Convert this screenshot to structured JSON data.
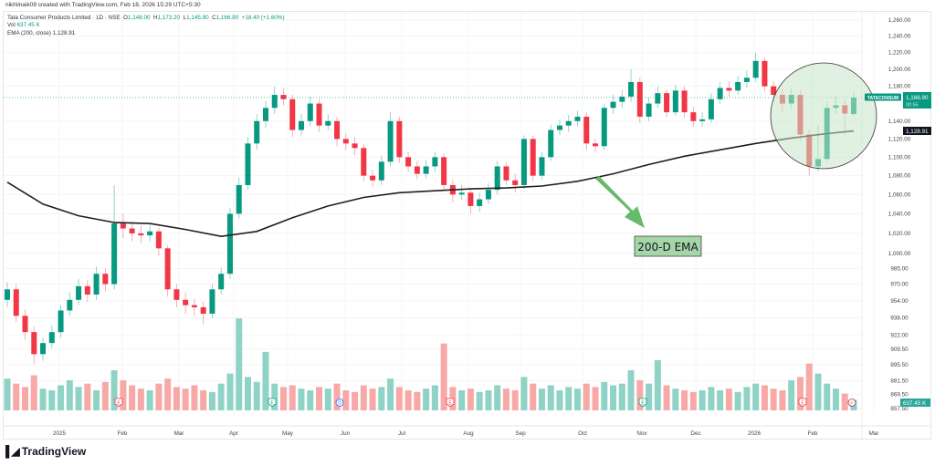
{
  "credit": "nikhilnaik09 created with TradingView.com, Feb 18, 2026 15:29 UTC+5:30",
  "legend": {
    "symbol": "Tata Consumer Products Limited · 1D · NSE",
    "o_label": "O",
    "o": "1,148.00",
    "h_label": "H",
    "h": "1,173.20",
    "l_label": "L",
    "l": "1,145.80",
    "c_label": "C",
    "c": "1,166.90",
    "change": "+18.40 (+1.60%)",
    "vol_label": "Vol",
    "vol": "637.45 K",
    "ema_label": "EMA (200, close)",
    "ema": "1,128.91"
  },
  "badges": {
    "ticker": "TATACONSUM",
    "price": "1,166.90",
    "countdown": "00:55",
    "ema": "1,128.91",
    "volume": "637.45 K"
  },
  "annotation": {
    "label": "200-D EMA"
  },
  "markers": {
    "earnings": "E",
    "dividend": "D",
    "split": "⚡"
  },
  "brand": "TradingView",
  "colors": {
    "up": "#089981",
    "down": "#f23645",
    "ema": "#1e1e1e",
    "highlight": "#c8e6c9",
    "arrow": "#66bb6a"
  },
  "chart_data": {
    "type": "candlestick",
    "title": "Tata Consumer Products Limited · 1D · NSE",
    "y_scale": "log",
    "ylim": [
      855,
      1265
    ],
    "yticks": [
      "1,260.00",
      "1,240.00",
      "1,220.00",
      "1,200.00",
      "1,180.00",
      "1,140.00",
      "1,120.00",
      "1,100.00",
      "1,080.00",
      "1,060.00",
      "1,040.00",
      "1,020.00",
      "1,000.00",
      "985.00",
      "970.00",
      "954.00",
      "938.00",
      "922.00",
      "909.50",
      "895.50",
      "881.50",
      "869.50",
      "857.50"
    ],
    "xticks": [
      "2025",
      "Feb",
      "Mar",
      "Apr",
      "May",
      "Jun",
      "Jul",
      "Aug",
      "Sep",
      "Oct",
      "Nov",
      "Dec",
      "2026",
      "Feb",
      "Mar"
    ],
    "open": [
      955,
      965,
      940,
      925,
      905,
      915,
      925,
      945,
      955,
      968,
      960,
      980,
      970,
      1030,
      1025,
      1020,
      1018,
      1022,
      1005,
      965,
      955,
      950,
      948,
      942,
      965,
      980,
      1040,
      1070,
      1115,
      1140,
      1155,
      1170,
      1165,
      1130,
      1140,
      1160,
      1135,
      1140,
      1120,
      1115,
      1110,
      1080,
      1075,
      1095,
      1140,
      1100,
      1090,
      1082,
      1090,
      1100,
      1070,
      1060,
      1062,
      1048,
      1055,
      1065,
      1090,
      1075,
      1070,
      1120,
      1080,
      1100,
      1130,
      1135,
      1140,
      1145,
      1115,
      1112,
      1155,
      1162,
      1168,
      1185,
      1145,
      1160,
      1172,
      1150,
      1175,
      1150,
      1140,
      1142,
      1165,
      1178,
      1175,
      1185,
      1190,
      1210,
      1180,
      1170,
      1160,
      1170,
      1125,
      1090,
      1098,
      1155,
      1158,
      1148
    ],
    "high": [
      972,
      970,
      946,
      930,
      920,
      931,
      950,
      962,
      975,
      974,
      987,
      985,
      1070,
      1040,
      1032,
      1028,
      1030,
      1026,
      1008,
      970,
      962,
      956,
      953,
      970,
      986,
      1046,
      1078,
      1122,
      1148,
      1163,
      1180,
      1178,
      1170,
      1148,
      1168,
      1165,
      1148,
      1145,
      1126,
      1122,
      1114,
      1086,
      1102,
      1150,
      1145,
      1106,
      1096,
      1097,
      1106,
      1104,
      1076,
      1070,
      1066,
      1062,
      1072,
      1096,
      1094,
      1082,
      1124,
      1124,
      1106,
      1136,
      1142,
      1147,
      1152,
      1150,
      1120,
      1160,
      1170,
      1176,
      1200,
      1190,
      1167,
      1180,
      1176,
      1182,
      1180,
      1156,
      1150,
      1172,
      1185,
      1186,
      1192,
      1198,
      1220,
      1214,
      1186,
      1176,
      1178,
      1176,
      1130,
      1136,
      1162,
      1168,
      1164,
      1173.2
    ],
    "low": [
      948,
      934,
      918,
      896,
      899,
      910,
      920,
      940,
      950,
      953,
      955,
      963,
      965,
      1015,
      1012,
      1010,
      1012,
      998,
      958,
      948,
      942,
      940,
      932,
      938,
      960,
      975,
      1035,
      1065,
      1108,
      1132,
      1148,
      1158,
      1122,
      1124,
      1134,
      1128,
      1130,
      1112,
      1108,
      1102,
      1074,
      1068,
      1070,
      1090,
      1094,
      1084,
      1076,
      1077,
      1084,
      1064,
      1052,
      1054,
      1040,
      1042,
      1050,
      1060,
      1070,
      1062,
      1066,
      1074,
      1076,
      1096,
      1124,
      1128,
      1134,
      1108,
      1105,
      1108,
      1148,
      1155,
      1162,
      1138,
      1140,
      1155,
      1144,
      1146,
      1144,
      1134,
      1134,
      1138,
      1160,
      1168,
      1170,
      1178,
      1185,
      1174,
      1162,
      1150,
      1154,
      1118,
      1080,
      1084,
      1094,
      1148,
      1125,
      1145.8
    ],
    "close": [
      965,
      940,
      925,
      905,
      915,
      925,
      945,
      955,
      968,
      960,
      980,
      970,
      1030,
      1025,
      1020,
      1018,
      1022,
      1005,
      965,
      955,
      950,
      948,
      942,
      965,
      980,
      1040,
      1070,
      1115,
      1140,
      1155,
      1170,
      1165,
      1130,
      1140,
      1160,
      1135,
      1140,
      1120,
      1115,
      1110,
      1080,
      1075,
      1095,
      1140,
      1100,
      1090,
      1082,
      1090,
      1100,
      1070,
      1060,
      1062,
      1048,
      1055,
      1065,
      1090,
      1075,
      1070,
      1120,
      1080,
      1100,
      1130,
      1135,
      1140,
      1145,
      1115,
      1112,
      1155,
      1162,
      1168,
      1185,
      1145,
      1160,
      1172,
      1150,
      1175,
      1150,
      1140,
      1142,
      1165,
      1178,
      1175,
      1185,
      1190,
      1210,
      1180,
      1170,
      1160,
      1170,
      1125,
      1090,
      1098,
      1155,
      1158,
      1148.5,
      1166.9
    ],
    "volume_m": [
      1.9,
      1.6,
      1.4,
      2.1,
      1.3,
      1.2,
      1.5,
      1.8,
      1.4,
      1.6,
      1.2,
      1.7,
      2.4,
      1.8,
      1.5,
      1.3,
      1.2,
      1.6,
      1.9,
      1.4,
      1.3,
      1.5,
      1.2,
      1.1,
      1.6,
      2.2,
      5.5,
      2.0,
      1.7,
      3.5,
      1.6,
      1.4,
      1.5,
      1.3,
      1.2,
      1.4,
      1.3,
      1.6,
      1.2,
      1.1,
      1.5,
      1.3,
      1.4,
      1.9,
      1.4,
      1.2,
      1.1,
      1.3,
      1.5,
      4.0,
      1.4,
      1.2,
      1.3,
      1.1,
      1.2,
      1.5,
      1.3,
      1.2,
      2.0,
      1.6,
      1.3,
      1.5,
      1.2,
      1.4,
      1.3,
      1.6,
      1.4,
      1.7,
      1.5,
      1.6,
      2.4,
      1.8,
      1.6,
      3.0,
      1.5,
      1.3,
      1.2,
      1.1,
      1.2,
      1.4,
      1.2,
      1.3,
      1.1,
      1.4,
      1.6,
      1.5,
      1.3,
      1.2,
      1.8,
      2.0,
      2.8,
      2.2,
      1.6,
      1.3,
      1.0,
      0.637
    ],
    "ema_sampled_every_4": [
      1073,
      1050,
      1038,
      1031,
      1030,
      1024,
      1017,
      1022,
      1036,
      1048,
      1057,
      1062,
      1064,
      1066,
      1067,
      1069,
      1074,
      1082,
      1092,
      1101,
      1108,
      1115,
      1121,
      1126,
      1128.91
    ],
    "current_price": 1166.9,
    "ema_last": 1128.91
  }
}
